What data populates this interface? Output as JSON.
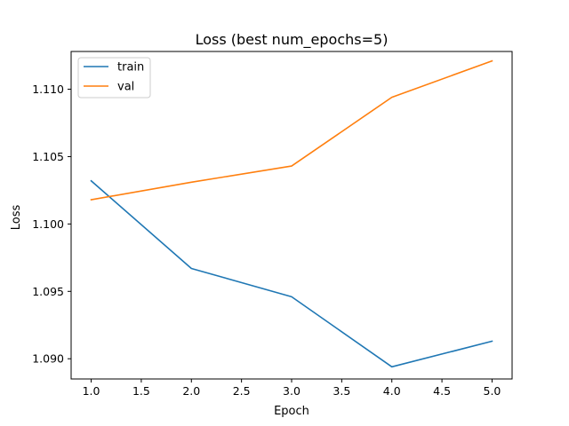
{
  "chart_data": {
    "type": "line",
    "title": "Loss (best num_epochs=5)",
    "xlabel": "Epoch",
    "ylabel": "Loss",
    "x": [
      1.0,
      2.0,
      3.0,
      4.0,
      5.0
    ],
    "series": [
      {
        "name": "train",
        "color": "#1f77b4",
        "values": [
          1.1032,
          1.0967,
          1.0946,
          1.0894,
          1.0913
        ]
      },
      {
        "name": "val",
        "color": "#ff7f0e",
        "values": [
          1.1018,
          1.1031,
          1.1043,
          1.1094,
          1.1121
        ]
      }
    ],
    "xlim": [
      0.8,
      5.2
    ],
    "ylim": [
      1.0885,
      1.1128
    ],
    "xticks": [
      1.0,
      1.5,
      2.0,
      2.5,
      3.0,
      3.5,
      4.0,
      4.5,
      5.0
    ],
    "xtick_labels": [
      "1.0",
      "1.5",
      "2.0",
      "2.5",
      "3.0",
      "3.5",
      "4.0",
      "4.5",
      "5.0"
    ],
    "yticks": [
      1.09,
      1.095,
      1.1,
      1.105,
      1.11
    ],
    "ytick_labels": [
      "1.090",
      "1.095",
      "1.100",
      "1.105",
      "1.110"
    ],
    "grid": false,
    "legend_position": "top-left"
  }
}
